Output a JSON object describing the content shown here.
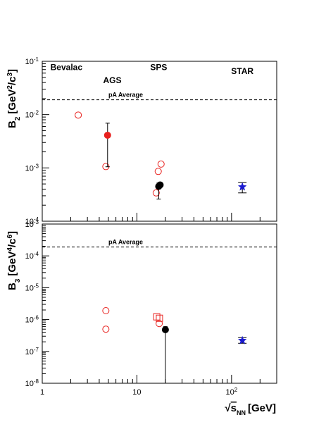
{
  "chart_data": [
    {
      "type": "scatter",
      "title": "",
      "xlabel": "",
      "ylabel_main": "B",
      "ylabel_sub": "2",
      "ylabel_unit": "[GeV",
      "ylabel_unit_sup1": "2",
      "ylabel_unit_mid": "/c",
      "ylabel_unit_sup2": "3",
      "ylabel_end": "]",
      "x_scale": "log",
      "y_scale": "log",
      "xlim": [
        1,
        300
      ],
      "ylim": [
        0.0001,
        0.1
      ],
      "y_ticks": [
        {
          "v": 0.1,
          "base": "10",
          "exp": "-1"
        },
        {
          "v": 0.01,
          "base": "10",
          "exp": "-2"
        },
        {
          "v": 0.001,
          "base": "10",
          "exp": "-3"
        },
        {
          "v": 0.0001,
          "base": "10",
          "exp": "-4"
        }
      ],
      "reference_line": {
        "label": "pA Average",
        "value": 0.019
      },
      "annotations": [
        {
          "text": "Bevalac",
          "x": 1.8,
          "y": 0.068
        },
        {
          "text": "AGS",
          "x": 5.5,
          "y": 0.039
        },
        {
          "text": "SPS",
          "x": 17.0,
          "y": 0.068
        },
        {
          "text": "STAR",
          "x": 130,
          "y": 0.058
        }
      ],
      "series": [
        {
          "marker": "open-circle-red",
          "points": [
            {
              "x": 2.4,
              "y": 0.0098
            },
            {
              "x": 4.7,
              "y": 0.00106
            },
            {
              "x": 16.0,
              "y": 0.00034
            },
            {
              "x": 16.8,
              "y": 0.00086
            },
            {
              "x": 18.0,
              "y": 0.00118
            }
          ]
        },
        {
          "marker": "filled-circle-red",
          "points": [
            {
              "x": 4.9,
              "y": 0.0041,
              "ylo": 0.00105,
              "yhi": 0.0069
            }
          ]
        },
        {
          "marker": "filled-circle-black",
          "points": [
            {
              "x": 17.0,
              "y": 0.00045,
              "ylo": 0.00026,
              "yhi": 0.00052
            },
            {
              "x": 17.6,
              "y": 0.00048
            }
          ]
        },
        {
          "marker": "filled-star-blue",
          "points": [
            {
              "x": 130,
              "y": 0.00044,
              "ylo": 0.00034,
              "yhi": 0.00053
            }
          ]
        }
      ]
    },
    {
      "type": "scatter",
      "title": "",
      "xlabel_root": "√",
      "xlabel_s": "s",
      "xlabel_sub": "NN",
      "xlabel_unit": "[GeV]",
      "ylabel_main": "B",
      "ylabel_sub": "3",
      "ylabel_unit": "[GeV",
      "ylabel_unit_sup1": "4",
      "ylabel_unit_mid": "/c",
      "ylabel_unit_sup2": "6",
      "ylabel_end": "]",
      "x_scale": "log",
      "y_scale": "log",
      "xlim": [
        1,
        300
      ],
      "ylim": [
        1e-08,
        0.001
      ],
      "x_ticks": [
        {
          "v": 1,
          "label": "1"
        },
        {
          "v": 10,
          "label": "10"
        },
        {
          "v": 100,
          "label": "10",
          "exp": "2"
        }
      ],
      "y_ticks": [
        {
          "v": 0.001,
          "base": "10",
          "exp": "-3"
        },
        {
          "v": 0.0001,
          "base": "10",
          "exp": "-4"
        },
        {
          "v": 1e-05,
          "base": "10",
          "exp": "-5"
        },
        {
          "v": 1e-06,
          "base": "10",
          "exp": "-6"
        },
        {
          "v": 1e-07,
          "base": "10",
          "exp": "-7"
        },
        {
          "v": 1e-08,
          "base": "10",
          "exp": "-8"
        }
      ],
      "reference_line": {
        "label": "pA Average",
        "value": 0.00019
      },
      "series": [
        {
          "marker": "open-circle-red",
          "points": [
            {
              "x": 4.7,
              "y": 1.9e-06
            },
            {
              "x": 4.7,
              "y": 5e-07
            },
            {
              "x": 17.2,
              "y": 7.5e-07
            }
          ]
        },
        {
          "marker": "open-square-red",
          "points": [
            {
              "x": 16.2,
              "y": 1.22e-06
            },
            {
              "x": 17.3,
              "y": 1.1e-06
            }
          ]
        },
        {
          "marker": "filled-circle-black",
          "points": [
            {
              "x": 20.0,
              "y": 4.8e-07,
              "ylo": 1e-08,
              "yhi": 6e-07
            }
          ]
        },
        {
          "marker": "filled-star-blue",
          "points": [
            {
              "x": 130,
              "y": 2.2e-07,
              "ylo": 1.8e-07,
              "yhi": 2.7e-07
            }
          ]
        }
      ]
    }
  ]
}
